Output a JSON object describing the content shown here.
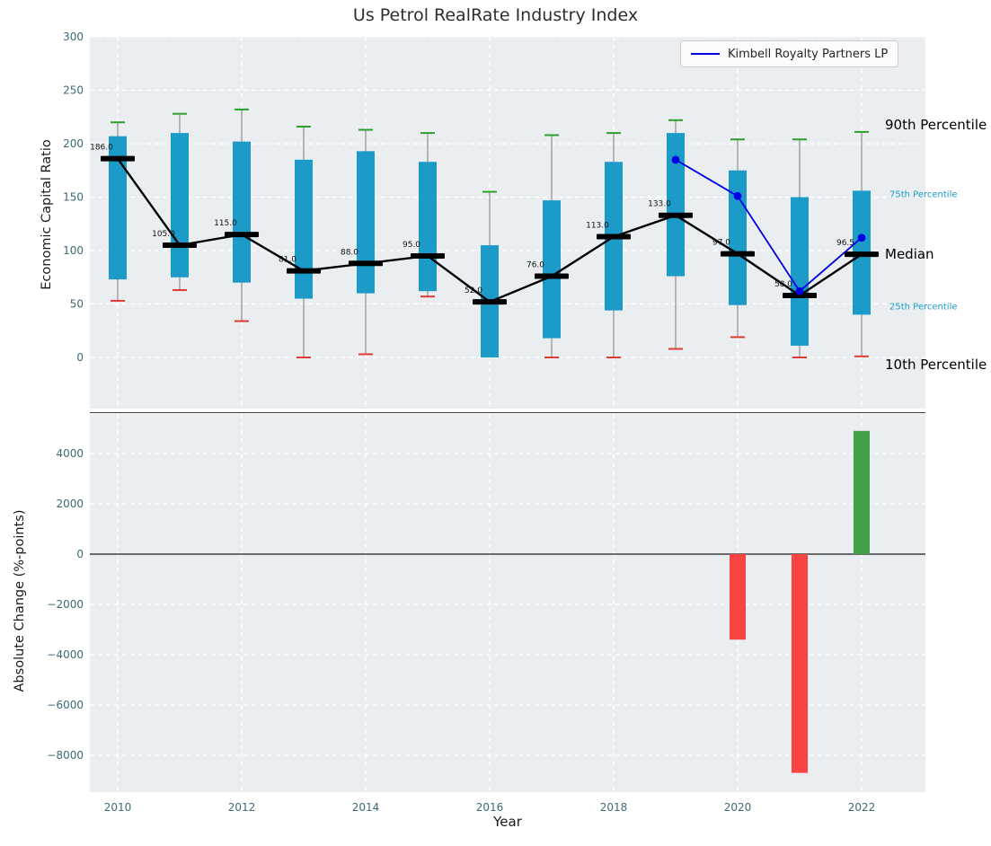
{
  "colors": {
    "plot_bg": "#eaeef1",
    "grid": "#ffffff",
    "tick": "#3d6a76",
    "box": "#1c9bc9",
    "p90_cap": "#2ca02c",
    "p10_cap": "#e03a34",
    "median": "#000000",
    "company": "#0000e6",
    "bar_positive": "#43a047",
    "bar_negative": "#fa4343"
  },
  "chart_data": [
    {
      "type": "boxplot-line",
      "title": "Us Petrol RealRate Industry Index",
      "ylabel": "Economic Capital Ratio",
      "ylim": [
        -48,
        300
      ],
      "yticks": [
        0,
        50,
        100,
        150,
        200,
        250,
        300
      ],
      "grid": true,
      "categories": [
        2010,
        2011,
        2012,
        2013,
        2014,
        2015,
        2016,
        2017,
        2018,
        2019,
        2020,
        2021,
        2022
      ],
      "legend": {
        "position": "upper right",
        "entries": [
          {
            "label": "Kimbell Royalty Partners LP",
            "color": "#0000e6"
          }
        ]
      },
      "series": [
        {
          "name": "Median",
          "color": "#000000",
          "values": [
            186,
            105,
            115,
            81,
            88,
            95,
            52,
            76,
            113,
            133,
            97,
            58,
            96.5
          ],
          "labels": [
            "186.0",
            "105.0",
            "115.0",
            "81.0",
            "88.0",
            "95.0",
            "52.0",
            "76.0",
            "113.0",
            "133.0",
            "97.0",
            "58.0",
            "96.5"
          ]
        },
        {
          "name": "p75",
          "values": [
            207,
            210,
            202,
            185,
            193,
            183,
            105,
            147,
            183,
            210,
            175,
            150,
            156
          ]
        },
        {
          "name": "p25",
          "values": [
            73,
            75,
            70,
            55,
            60,
            62,
            0,
            18,
            44,
            76,
            49,
            11,
            40
          ]
        },
        {
          "name": "p90",
          "color": "#2ca02c",
          "values": [
            220,
            228,
            232,
            216,
            213,
            210,
            155,
            208,
            210,
            222,
            204,
            204,
            211
          ]
        },
        {
          "name": "p10",
          "color": "#e03a34",
          "values": [
            53,
            63,
            34,
            0,
            3,
            57,
            1,
            0,
            0,
            8,
            19,
            0,
            1
          ]
        },
        {
          "name": "Kimbell Royalty Partners LP",
          "color": "#0000e6",
          "x": [
            2019,
            2020,
            2021,
            2022
          ],
          "values": [
            185,
            151,
            62,
            112
          ]
        }
      ],
      "annotations": [
        {
          "text": "90th Percentile",
          "value": 218,
          "color": "#000000",
          "size": "large"
        },
        {
          "text": "75th Percentile",
          "value": 152,
          "color": "#1a9bc9",
          "size": "small"
        },
        {
          "text": "Median",
          "value": 97,
          "color": "#000000",
          "size": "large"
        },
        {
          "text": "25th Percentile",
          "value": 47,
          "color": "#1a9bc9",
          "size": "small"
        },
        {
          "text": "10th Percentile",
          "value": -7,
          "color": "#000000",
          "size": "large"
        }
      ]
    },
    {
      "type": "bar",
      "ylabel": "Absolute Change (%-points)",
      "xlabel": "Year",
      "ylim": [
        -9460,
        5570
      ],
      "yticks": [
        -8000,
        -6000,
        -4000,
        -2000,
        0,
        2000,
        4000
      ],
      "xticks": [
        2010,
        2012,
        2014,
        2016,
        2018,
        2020,
        2022
      ],
      "categories": [
        2010,
        2011,
        2012,
        2013,
        2014,
        2015,
        2016,
        2017,
        2018,
        2019,
        2020,
        2021,
        2022
      ],
      "values": [
        null,
        null,
        null,
        null,
        null,
        null,
        null,
        null,
        null,
        null,
        -3400,
        -8700,
        4900
      ]
    }
  ]
}
